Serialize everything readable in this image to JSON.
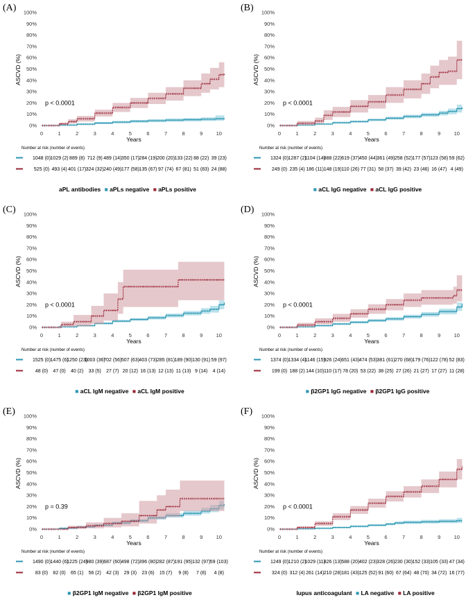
{
  "colors": {
    "negative": "#2b96b1",
    "positive": "#9a2535",
    "neg_band": "#8fcfe0",
    "pos_band": "#cf9aa3"
  },
  "common": {
    "x_ticks": [
      "0",
      "1",
      "2",
      "3",
      "4",
      "5",
      "6",
      "7",
      "8",
      "9",
      "10"
    ],
    "y_ticks": [
      "0%",
      "10%",
      "20%",
      "30%",
      "40%",
      "50%",
      "60%",
      "70%",
      "80%",
      "90%",
      "100%"
    ],
    "xlabel": "Years",
    "ylabel": "ASCVD (%)",
    "risk_table_title": "Number at risk (number of events)"
  },
  "chart_data": [
    {
      "type": "line",
      "panel": "(A)",
      "p_value": "p < 0.0001",
      "legend_title": "aPL antibodies",
      "xlim": [
        0,
        10.4
      ],
      "ylim": [
        0,
        100
      ],
      "series": [
        {
          "name": "aPLs negative",
          "x": [
            0,
            1,
            2,
            3,
            4,
            5,
            6,
            7,
            8,
            9,
            9.8,
            10.3
          ],
          "y": [
            0,
            0.4,
            1.2,
            2.2,
            3,
            3.8,
            4.3,
            4.8,
            5.2,
            5.6,
            6,
            6.5
          ],
          "ci_low": [
            0,
            0.1,
            0.6,
            1.3,
            2,
            2.6,
            3,
            3.4,
            3.7,
            4,
            4.2,
            4.3
          ],
          "ci_high": [
            0,
            0.8,
            1.8,
            3.1,
            4,
            5,
            5.6,
            6.2,
            6.7,
            7.2,
            9,
            9.5
          ]
        },
        {
          "name": "aPLs positive",
          "x": [
            0,
            1,
            1.5,
            2,
            3,
            4,
            5,
            6,
            7,
            8,
            9,
            9.5,
            10,
            10.3
          ],
          "y": [
            0,
            1.5,
            3.5,
            6,
            11,
            16,
            20,
            24,
            28,
            33,
            37,
            41,
            45,
            46
          ],
          "ci_low": [
            0,
            0.5,
            1.8,
            3.5,
            8,
            12,
            15.5,
            19,
            22,
            26,
            29,
            32,
            34,
            35
          ],
          "ci_high": [
            0,
            2.5,
            5.5,
            8.5,
            14,
            20,
            24.5,
            29,
            34,
            40,
            46,
            51,
            56,
            57
          ]
        }
      ],
      "risk_table": [
        {
          "group": "aPLs negative",
          "cells": [
            "1048 (0)",
            "1029 (2)",
            "889 (8)",
            "712 (9)",
            "489 (14)",
            "350 (17)",
            "284 (19)",
            "200 (20)",
            "133 (22)",
            "88 (22)",
            "39 (23)"
          ]
        },
        {
          "group": "aPLs positive",
          "cells": [
            "525 (0)",
            "493 (4)",
            "401 (17)",
            "324 (32)",
            "240 (49)",
            "177 (58)",
            "135 (67)",
            "97 (74)",
            "67 (81)",
            "51 (83)",
            "24 (88)"
          ]
        }
      ]
    },
    {
      "type": "line",
      "panel": "(B)",
      "p_value": "p < 0.0001",
      "legend_title": "",
      "xlim": [
        0,
        10.4
      ],
      "ylim": [
        0,
        100
      ],
      "series": [
        {
          "name": "aCL IgG negative",
          "x": [
            0,
            1,
            2,
            3,
            4,
            5,
            6,
            7,
            8,
            9,
            9.5,
            10,
            10.3
          ],
          "y": [
            0,
            0.5,
            1.3,
            2.5,
            3.5,
            5,
            6.5,
            8,
            9.5,
            11,
            12.5,
            15,
            16
          ],
          "ci_low": [
            0,
            0.2,
            0.8,
            1.8,
            2.7,
            4,
            5.2,
            6.5,
            7.8,
            9,
            10,
            11.5,
            12
          ],
          "ci_high": [
            0,
            0.8,
            1.8,
            3.2,
            4.3,
            6,
            7.8,
            9.5,
            11.2,
            13,
            15,
            18.5,
            20
          ]
        },
        {
          "name": "aCL IgG positive",
          "x": [
            0,
            1,
            2,
            2.5,
            3,
            4,
            5,
            6,
            7,
            8,
            8.5,
            9,
            9.5,
            10,
            10.3
          ],
          "y": [
            0,
            2,
            4,
            9,
            12,
            17,
            21,
            27,
            32,
            37,
            43,
            47,
            48,
            58,
            58
          ],
          "ci_low": [
            0,
            0.5,
            1.5,
            5,
            7.5,
            11.5,
            15,
            20,
            24,
            28,
            33,
            36,
            36,
            41,
            41
          ],
          "ci_high": [
            0,
            4,
            7,
            13.5,
            16.5,
            22.5,
            27,
            34,
            40,
            46,
            53,
            58,
            61,
            75,
            75
          ]
        }
      ],
      "risk_table": [
        {
          "group": "aCL IgG negative",
          "cells": [
            "1324 (0)",
            "1287 (2)",
            "1104 (14)",
            "888 (22)",
            "619 (37)",
            "450 (44)",
            "361 (49)",
            "258 (52)",
            "177 (57)",
            "123 (58)",
            "59 (62)"
          ]
        },
        {
          "group": "aCL IgG positive",
          "cells": [
            "249 (0)",
            "235 (4)",
            "186 (11)",
            "148 (19)",
            "110 (26)",
            "77 (31)",
            "58 (37)",
            "39 (42)",
            "23 (46)",
            "16 (47)",
            "4 (49)"
          ]
        }
      ]
    },
    {
      "type": "line",
      "panel": "(C)",
      "p_value": "p < 0.0001",
      "legend_title": "",
      "xlim": [
        0,
        10.4
      ],
      "ylim": [
        0,
        100
      ],
      "series": [
        {
          "name": "aCL IgM negative",
          "x": [
            0,
            1,
            2,
            3,
            4,
            5,
            6,
            7,
            8,
            9,
            9.5,
            10,
            10.3
          ],
          "y": [
            0,
            0.5,
            1.5,
            3.5,
            5.5,
            7,
            8.5,
            10.5,
            12.5,
            14.5,
            16,
            20,
            22
          ],
          "ci_low": [
            0,
            0.2,
            1,
            2.7,
            4.5,
            5.8,
            7,
            8.8,
            10.5,
            12,
            13,
            16,
            17.5
          ],
          "ci_high": [
            0,
            0.8,
            2,
            4.3,
            6.5,
            8.2,
            10,
            12.2,
            14.5,
            17,
            19,
            24,
            27
          ]
        },
        {
          "name": "aCL IgM positive",
          "x": [
            0,
            1.1,
            1.8,
            2.8,
            3.5,
            4.3,
            4.6,
            6,
            7,
            7.7,
            8.5,
            9.5,
            10.3
          ],
          "y": [
            0,
            2.5,
            5,
            10,
            15,
            25,
            36,
            36,
            36,
            42,
            42,
            42,
            42
          ],
          "ci_low": [
            0,
            0.5,
            1,
            3,
            6,
            12,
            18,
            18,
            18,
            24,
            24,
            24,
            24
          ],
          "ci_high": [
            0,
            5,
            11,
            19,
            30,
            40,
            51,
            51,
            51,
            58,
            58,
            58,
            58
          ]
        }
      ],
      "risk_table": [
        {
          "group": "aCL IgM negative",
          "cells": [
            "1525 (0)",
            "1475 (6)",
            "1250 (23)",
            "1003 (36)",
            "702 (56)",
            "507 (63)",
            "403 (73)",
            "285 (81)",
            "189 (90)",
            "130 (91)",
            "59 (97)"
          ]
        },
        {
          "group": "aCL IgM positive",
          "cells": [
            "48 (0)",
            "47 (0)",
            "40 (2)",
            "33 (5)",
            "27 (7)",
            "20 (12)",
            "16 (13)",
            "12 (13)",
            "11 (13)",
            "9 (14)",
            "4 (14)"
          ]
        }
      ]
    },
    {
      "type": "line",
      "panel": "(D)",
      "p_value": "p < 0.0001",
      "legend_title": "",
      "xlim": [
        0,
        10.4
      ],
      "ylim": [
        0,
        100
      ],
      "series": [
        {
          "name": "β2GP1 IgG negative",
          "x": [
            0,
            1,
            2,
            3,
            4,
            5,
            6,
            7,
            8,
            9,
            10,
            10.3
          ],
          "y": [
            0,
            0.5,
            1.5,
            3,
            4.5,
            6,
            7.5,
            9.5,
            11.5,
            14,
            18,
            21
          ],
          "ci_low": [
            0,
            0.2,
            1,
            2.2,
            3.5,
            4.8,
            6,
            7.8,
            9.5,
            11.5,
            14.5,
            16
          ],
          "ci_high": [
            0,
            0.8,
            2,
            3.8,
            5.5,
            7.2,
            9,
            11.2,
            13.5,
            16.5,
            22,
            25
          ]
        },
        {
          "name": "β2GP1 IgG positive",
          "x": [
            0,
            1,
            2,
            3,
            4,
            5,
            6,
            7,
            8,
            9,
            9.8,
            10,
            10.3
          ],
          "y": [
            0,
            2,
            5,
            8,
            12,
            16,
            20,
            24,
            26,
            26,
            28,
            33,
            33
          ],
          "ci_low": [
            0,
            0.5,
            2.5,
            5,
            8.5,
            12,
            15,
            18,
            20,
            20,
            21,
            23,
            23
          ],
          "ci_high": [
            0,
            4,
            8,
            12,
            16,
            20.5,
            25,
            30,
            33,
            33,
            36,
            46,
            46
          ]
        }
      ],
      "risk_table": [
        {
          "group": "β2GP1 IgG negative",
          "cells": [
            "1374 (0)",
            "1334 (4)",
            "1146 (15)",
            "926 (24)",
            "651 (43)",
            "474 (53)",
            "381 (61)",
            "270 (68)",
            "179 (76)",
            "122 (78)",
            "52 (83)"
          ]
        },
        {
          "group": "β2GP1 IgG positive",
          "cells": [
            "199 (0)",
            "188 (2)",
            "144 (10)",
            "110 (17)",
            "78 (20)",
            "53 (22)",
            "38 (25)",
            "27 (26)",
            "21 (27)",
            "17 (27)",
            "11 (28)"
          ]
        }
      ]
    },
    {
      "type": "line",
      "panel": "(E)",
      "p_value": "p = 0.39",
      "legend_title": "",
      "xlim": [
        0,
        10.4
      ],
      "ylim": [
        0,
        100
      ],
      "series": [
        {
          "name": "β2GP1 IgM negative",
          "x": [
            0,
            1,
            2,
            3,
            4,
            5,
            6,
            7,
            8,
            9,
            9.5,
            10,
            10.3
          ],
          "y": [
            0,
            0.8,
            2,
            3.5,
            5.5,
            7.5,
            10,
            12,
            14,
            16,
            18,
            21,
            22
          ],
          "ci_low": [
            0,
            0.3,
            1.3,
            2.7,
            4.5,
            6.3,
            8.5,
            10.3,
            12,
            13.8,
            15,
            17.5,
            18
          ],
          "ci_high": [
            0,
            1.2,
            2.7,
            4.3,
            6.5,
            8.8,
            11.5,
            14,
            16.5,
            19,
            21.5,
            25,
            26.5
          ]
        },
        {
          "name": "β2GP1 IgM positive",
          "x": [
            0,
            1.5,
            2.5,
            3.5,
            4.5,
            5.3,
            5.5,
            6.5,
            7,
            7.8,
            8.5,
            9.5,
            10.3
          ],
          "y": [
            0,
            1.5,
            3,
            5,
            7,
            7,
            12,
            17,
            20,
            27,
            27,
            27,
            27
          ],
          "ci_low": [
            0,
            0.3,
            0.8,
            1.5,
            2.5,
            2.5,
            5,
            9,
            11,
            16,
            16,
            16,
            16
          ],
          "ci_high": [
            0,
            3,
            6,
            10,
            14,
            14,
            25,
            30,
            35,
            43,
            43,
            43,
            43
          ]
        }
      ],
      "risk_table": [
        {
          "group": "β2GP1 IgM negative",
          "cells": [
            "1490 (0)",
            "1440 (6)",
            "1225 (24)",
            "980 (39)",
            "687 (60)",
            "498 (72)",
            "396 (80)",
            "282 (87)",
            "191 (95)",
            "132 (97)",
            "59 (103)"
          ]
        },
        {
          "group": "β2GP1 IgM positive",
          "cells": [
            "83 (0)",
            "82 (0)",
            "65 (1)",
            "56 (2)",
            "42 (3)",
            "29 (3)",
            "23 (6)",
            "15 (7)",
            "9 (8)",
            "7 (8)",
            "4 (8)"
          ]
        }
      ]
    },
    {
      "type": "line",
      "panel": "(F)",
      "p_value": "p < 0.0001",
      "legend_title": "lupus anticoagulant",
      "xlim": [
        0,
        10.4
      ],
      "ylim": [
        0,
        100
      ],
      "series": [
        {
          "name": "LA negative",
          "x": [
            0,
            1,
            2,
            3,
            4,
            5,
            6,
            6.5,
            7,
            8,
            9,
            10,
            10.3
          ],
          "y": [
            0,
            0.3,
            0.8,
            1.5,
            2.5,
            3.5,
            4.5,
            5.5,
            6,
            6.5,
            7,
            7.5,
            7.5
          ],
          "ci_low": [
            0,
            0.1,
            0.4,
            1,
            1.8,
            2.7,
            3.5,
            4.3,
            4.7,
            5,
            5.3,
            5.5,
            5.5
          ],
          "ci_high": [
            0,
            0.6,
            1.2,
            2,
            3.2,
            4.3,
            5.5,
            6.8,
            7.5,
            8.2,
            8.8,
            10,
            10
          ]
        },
        {
          "name": "LA positive",
          "x": [
            0,
            1,
            2,
            3,
            4,
            5,
            6,
            7,
            8,
            9,
            10,
            10.3
          ],
          "y": [
            0,
            1.5,
            5,
            11,
            17,
            23,
            29,
            33,
            38,
            44,
            53,
            56
          ],
          "ci_low": [
            0,
            0.5,
            3,
            8,
            13.5,
            19,
            24.5,
            28,
            32,
            37,
            44,
            46
          ],
          "ci_high": [
            0,
            2.5,
            7,
            14,
            20.5,
            27,
            33.5,
            38,
            44,
            51,
            62,
            66
          ]
        }
      ],
      "risk_table": [
        {
          "group": "LA negative",
          "cells": [
            "1249 (0)",
            "1210 (2)",
            "1029 (11)",
            "826 (13)",
            "588 (20)",
            "402 (23)",
            "328 (26)",
            "230 (30)",
            "152 (33)",
            "105 (33)",
            "47 (34)"
          ]
        },
        {
          "group": "LA positive",
          "cells": [
            "324 (0)",
            "312 (4)",
            "261 (14)",
            "210 (28)",
            "181 (43)",
            "125 (52)",
            "91 (60)",
            "67 (64)",
            "48 (70)",
            "34 (72)",
            "16 (77)"
          ]
        }
      ]
    }
  ]
}
